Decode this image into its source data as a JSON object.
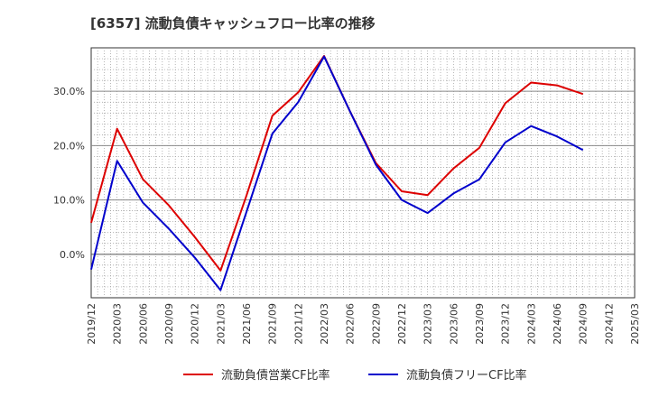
{
  "chart_data": {
    "type": "line",
    "title": "[6357]  流動負債キャッシュフロー比率の推移",
    "xlabel": "",
    "ylabel": "",
    "x": [
      "2019/12",
      "2020/03",
      "2020/06",
      "2020/09",
      "2020/12",
      "2021/03",
      "2021/06",
      "2021/09",
      "2021/12",
      "2022/03",
      "2022/06",
      "2022/09",
      "2022/12",
      "2023/03",
      "2023/06",
      "2023/09",
      "2023/12",
      "2024/03",
      "2024/06",
      "2024/09"
    ],
    "x_ticks": [
      "2019/12",
      "2020/03",
      "2020/06",
      "2020/09",
      "2020/12",
      "2021/03",
      "2021/06",
      "2021/09",
      "2021/12",
      "2022/03",
      "2022/06",
      "2022/09",
      "2022/12",
      "2023/03",
      "2023/06",
      "2023/09",
      "2023/12",
      "2024/03",
      "2024/06",
      "2024/09",
      "2024/12",
      "2025/03"
    ],
    "y_ticks": [
      {
        "value": 0.0,
        "label": "0.0%"
      },
      {
        "value": 10.0,
        "label": "10.0%"
      },
      {
        "value": 20.0,
        "label": "20.0%"
      },
      {
        "value": 30.0,
        "label": "30.0%"
      }
    ],
    "ylim": [
      -8.0,
      38.0
    ],
    "grid": true,
    "legend_position": "bottom",
    "series": [
      {
        "name": "流動負債営業CF比率",
        "color": "#dd0000",
        "values": [
          5.8,
          23.1,
          13.8,
          9.0,
          3.2,
          -3.0,
          10.8,
          25.5,
          29.8,
          36.5,
          26.3,
          16.8,
          11.6,
          10.9,
          15.8,
          19.6,
          27.8,
          31.6,
          31.1,
          29.5
        ]
      },
      {
        "name": "流動負債フリーCF比率",
        "color": "#0000cc",
        "values": [
          -2.8,
          17.2,
          9.5,
          4.7,
          -0.6,
          -6.6,
          7.8,
          22.2,
          28.0,
          36.4,
          26.3,
          16.5,
          10.0,
          7.6,
          11.2,
          13.8,
          20.6,
          23.6,
          21.7,
          19.2
        ]
      }
    ]
  }
}
